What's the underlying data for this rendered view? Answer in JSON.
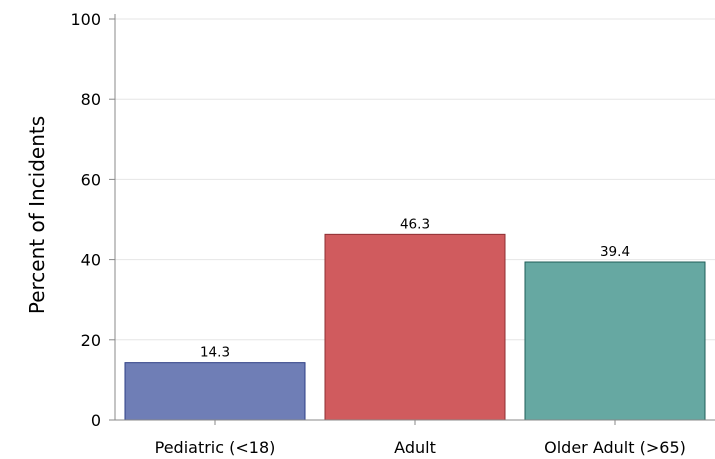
{
  "chart_data": {
    "type": "bar",
    "title": "",
    "xlabel": "",
    "ylabel": "Percent of Incidents",
    "categories": [
      "Pediatric (<18)",
      "Adult",
      "Older Adult (>65)"
    ],
    "values": [
      14.3,
      46.3,
      39.4
    ],
    "value_labels": [
      "14.3",
      "46.3",
      "39.4"
    ],
    "ylim": [
      0,
      100
    ],
    "yticks": [
      0,
      20,
      40,
      60,
      80,
      100
    ],
    "ytick_labels": [
      "0",
      "20",
      "40",
      "60",
      "80",
      "100"
    ],
    "grid": true,
    "legend": "none",
    "colors": {
      "bars": [
        "#6f7eb6",
        "#d05b5e",
        "#66a8a2"
      ],
      "bar_edges": [
        "#2e3f86",
        "#8e2f33",
        "#1f5e58"
      ],
      "grid": "#e6e6e6",
      "axis": "#888888"
    }
  }
}
